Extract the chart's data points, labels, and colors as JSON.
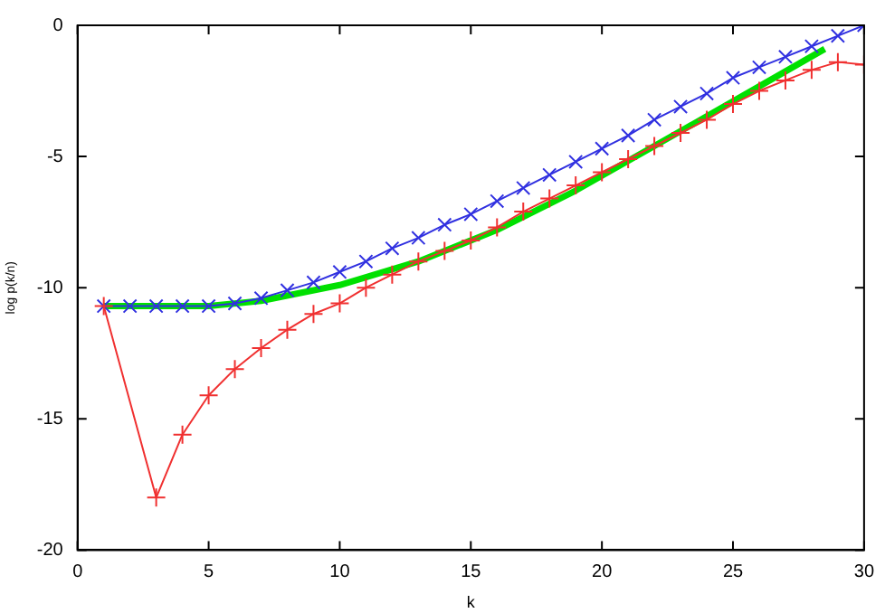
{
  "chart_data": {
    "type": "line",
    "xlabel": "k",
    "ylabel": "log p(k/n)",
    "xlim": [
      0,
      30
    ],
    "xticks": [
      0,
      5,
      10,
      15,
      20,
      25,
      30
    ],
    "ylim": [
      -20,
      0
    ],
    "yticks": [
      -20,
      -15,
      -10,
      -5,
      0
    ],
    "grid": false,
    "legend": false,
    "series": [
      {
        "color": "#00e000",
        "marker": "none",
        "x": [
          1,
          3,
          5,
          7,
          10,
          13,
          16,
          19,
          22,
          25,
          28.5
        ],
        "values": [
          -10.7,
          -10.7,
          -10.7,
          -10.5,
          -9.9,
          -9.0,
          -7.8,
          -6.3,
          -4.6,
          -2.9,
          -0.9
        ]
      },
      {
        "color": "#3030e0",
        "marker": "cross",
        "x": [
          1,
          2,
          3,
          4,
          5,
          6,
          7,
          8,
          9,
          10,
          11,
          12,
          13,
          14,
          15,
          16,
          17,
          18,
          19,
          20,
          21,
          22,
          23,
          24,
          25,
          26,
          27,
          28,
          29,
          30
        ],
        "values": [
          -10.7,
          -10.7,
          -10.7,
          -10.7,
          -10.7,
          -10.6,
          -10.4,
          -10.1,
          -9.8,
          -9.4,
          -9.0,
          -8.5,
          -8.1,
          -7.6,
          -7.2,
          -6.7,
          -6.2,
          -5.7,
          -5.2,
          -4.7,
          -4.2,
          -3.6,
          -3.1,
          -2.6,
          -2.0,
          -1.6,
          -1.2,
          -0.8,
          -0.4,
          0
        ]
      },
      {
        "color": "#f03030",
        "marker": "plus",
        "x": [
          1,
          3,
          4,
          5,
          6,
          7,
          8,
          9,
          10,
          11,
          12,
          13,
          14,
          15,
          16,
          17,
          18,
          19,
          20,
          21,
          22,
          23,
          24,
          25,
          26,
          27,
          28,
          29,
          30
        ],
        "values": [
          -10.7,
          -18.0,
          -15.6,
          -14.1,
          -13.1,
          -12.3,
          -11.6,
          -11.0,
          -10.6,
          -10.0,
          -9.5,
          -9.0,
          -8.6,
          -8.2,
          -7.7,
          -7.1,
          -6.6,
          -6.1,
          -5.6,
          -5.1,
          -4.6,
          -4.1,
          -3.6,
          -3.0,
          -2.5,
          -2.1,
          -1.7,
          -1.4,
          -1.5
        ]
      }
    ]
  }
}
